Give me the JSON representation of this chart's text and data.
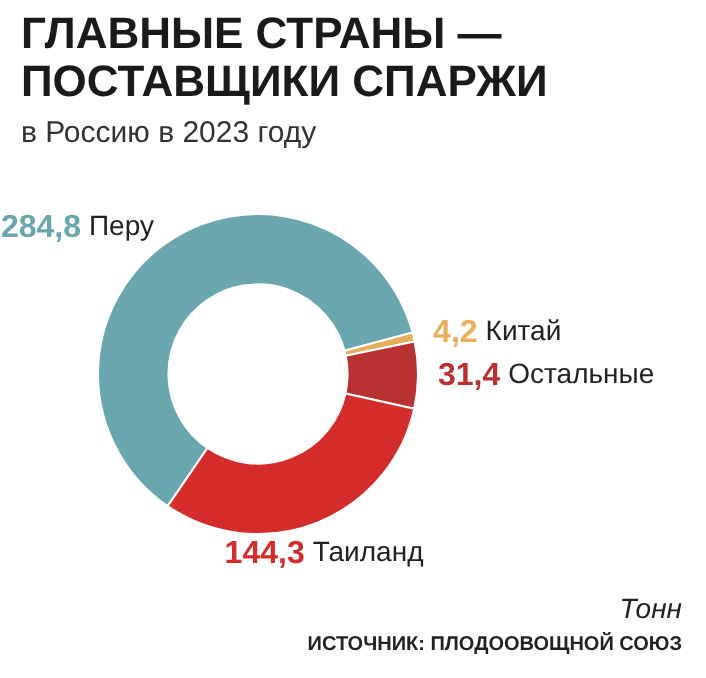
{
  "chart_data": {
    "type": "donut",
    "title": [
      "ГЛАВНЫЕ СТРАНЫ —",
      "ПОСТАВЩИКИ СПАРЖИ"
    ],
    "subtitle": "в Россию в 2023 году",
    "categories": [
      "Перу",
      "Китай",
      "Остальные",
      "Таиланд"
    ],
    "values": [
      284.8,
      4.2,
      31.4,
      144.3
    ],
    "value_labels": [
      "284,8",
      "4,2",
      "31,4",
      "144,3"
    ],
    "colors": [
      "#6aa6ae",
      "#e8ae5c",
      "#b83232",
      "#d42b2b"
    ],
    "annotations": [
      "Тонн",
      "ИСТОЧНИК: ПЛОДООВОЩНОЙ СОЮЗ"
    ]
  }
}
